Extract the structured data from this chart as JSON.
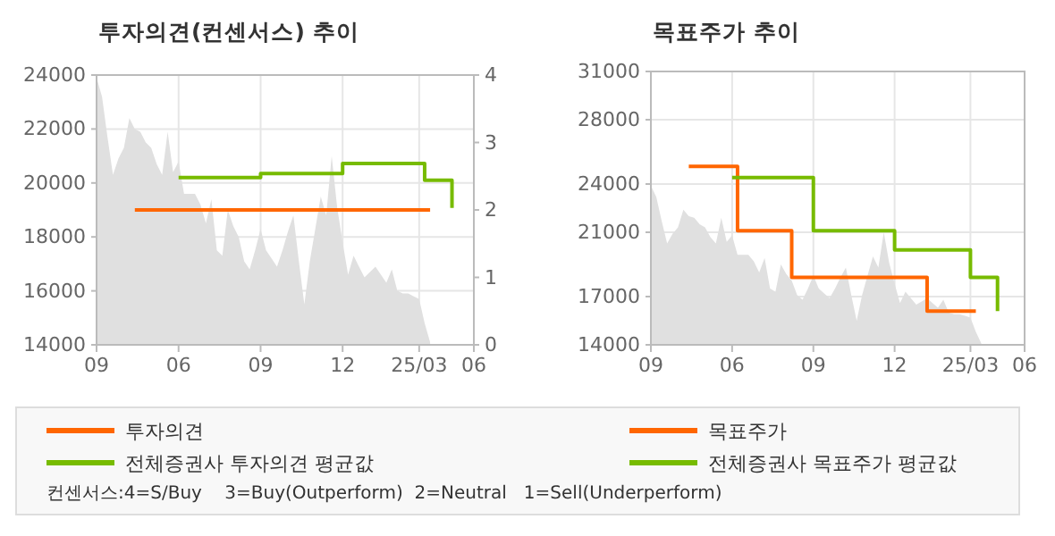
{
  "chart_data": [
    {
      "type": "step",
      "title": "투자의견(컨센서스) 추이",
      "categories": [
        "09",
        null,
        null,
        null,
        null,
        null,
        null,
        null,
        null,
        null,
        null,
        null,
        null,
        null,
        null,
        "06",
        null,
        null,
        null,
        null,
        null,
        null,
        null,
        null,
        null,
        null,
        null,
        null,
        null,
        null,
        "09",
        null,
        null,
        null,
        null,
        null,
        null,
        null,
        null,
        null,
        null,
        null,
        null,
        null,
        null,
        "12",
        null,
        null,
        null,
        null,
        null,
        null,
        null,
        null,
        null,
        null,
        null,
        null,
        null,
        "25/03",
        null,
        null,
        null,
        null,
        null,
        null,
        null,
        null,
        null,
        "06"
      ],
      "ylim": [
        14000,
        24000
      ],
      "yticks": [
        14000,
        16000,
        18000,
        20000,
        22000,
        24000
      ],
      "y2lim": [
        0,
        4
      ],
      "y2ticks": [
        0,
        1,
        2,
        3,
        4
      ],
      "grid": true,
      "legend": "bottom",
      "annotations": [
        "컨센서스:4=S/Buy    3=Buy(Outperform)  2=Neutral   1=Sell(Underperform)"
      ],
      "series": [
        {
          "type": "area",
          "color": "#e0e0e0",
          "values": [
            23900,
            23200,
            21700,
            20300,
            20900,
            21300,
            22400,
            22000,
            21900,
            21500,
            21300,
            20700,
            20300,
            21900,
            20400,
            20800,
            19600,
            19600,
            19600,
            19200,
            18500,
            19400,
            17500,
            17300,
            19000,
            18400,
            18000,
            17100,
            16800,
            17500,
            18300,
            17500,
            17200,
            16900,
            17500,
            18200,
            18800,
            17100,
            15500,
            17100,
            18300,
            19500,
            18800,
            21000,
            19100,
            17800,
            16600,
            17300,
            16900,
            16500,
            16700,
            16900,
            16600,
            16300,
            16800,
            16000,
            15900,
            15900,
            15800,
            15700,
            14800,
            14100,
            null,
            null,
            null,
            null,
            null,
            null,
            null,
            null
          ]
        },
        {
          "name": "투자의견",
          "color": "#ff6600",
          "axis": "y2",
          "values": [
            null,
            null,
            null,
            null,
            null,
            null,
            null,
            2,
            2,
            2,
            2,
            2,
            2,
            2,
            2,
            2,
            2,
            2,
            2,
            2,
            2,
            2,
            2,
            2,
            2,
            2,
            2,
            2,
            2,
            2,
            2,
            2,
            2,
            2,
            2,
            2,
            2,
            2,
            2,
            2,
            2,
            2,
            2,
            2,
            2,
            2,
            2,
            2,
            2,
            2,
            2,
            2,
            2,
            2,
            2,
            2,
            2,
            2,
            2,
            2,
            2,
            2,
            null,
            null,
            null,
            null,
            null,
            null,
            null,
            null
          ]
        },
        {
          "name": "전체증권사 투자의견 평균값",
          "color": "#77bb00",
          "axis": "y2",
          "values": [
            null,
            null,
            null,
            null,
            null,
            null,
            null,
            null,
            null,
            null,
            null,
            null,
            null,
            null,
            null,
            2.48,
            2.48,
            2.48,
            2.48,
            2.48,
            2.48,
            2.48,
            2.48,
            2.48,
            2.48,
            2.48,
            2.48,
            2.48,
            2.48,
            2.48,
            2.54,
            2.54,
            2.54,
            2.54,
            2.54,
            2.54,
            2.54,
            2.54,
            2.54,
            2.54,
            2.54,
            2.54,
            2.54,
            2.54,
            2.54,
            2.69,
            2.69,
            2.69,
            2.69,
            2.69,
            2.69,
            2.69,
            2.69,
            2.69,
            2.69,
            2.69,
            2.69,
            2.69,
            2.69,
            2.69,
            2.44,
            2.44,
            2.44,
            2.44,
            2.44,
            2.03,
            null,
            null,
            null,
            null
          ]
        }
      ]
    },
    {
      "type": "step",
      "title": "목표주가 추이",
      "categories": [
        "09",
        null,
        null,
        null,
        null,
        null,
        null,
        null,
        null,
        null,
        null,
        null,
        null,
        null,
        null,
        "06",
        null,
        null,
        null,
        null,
        null,
        null,
        null,
        null,
        null,
        null,
        null,
        null,
        null,
        null,
        "09",
        null,
        null,
        null,
        null,
        null,
        null,
        null,
        null,
        null,
        null,
        null,
        null,
        null,
        null,
        "12",
        null,
        null,
        null,
        null,
        null,
        null,
        null,
        null,
        null,
        null,
        null,
        null,
        null,
        "25/03",
        null,
        null,
        null,
        null,
        null,
        null,
        null,
        null,
        null,
        "06"
      ],
      "ylim": [
        14000,
        31000
      ],
      "yticks": [
        14000,
        17000,
        21000,
        24000,
        28000,
        31000
      ],
      "grid": true,
      "legend": "bottom",
      "series": [
        {
          "type": "area",
          "color": "#e0e0e0",
          "values": [
            23900,
            23200,
            21700,
            20300,
            20900,
            21300,
            22400,
            22000,
            21900,
            21500,
            21300,
            20700,
            20300,
            21900,
            20400,
            20800,
            19600,
            19600,
            19600,
            19200,
            18500,
            19400,
            17500,
            17300,
            19000,
            18400,
            18000,
            17100,
            16800,
            17500,
            18300,
            17500,
            17200,
            16900,
            17500,
            18200,
            18800,
            17100,
            15500,
            17100,
            18300,
            19500,
            18800,
            21000,
            19100,
            17800,
            16600,
            17300,
            16900,
            16500,
            16700,
            16900,
            16600,
            16300,
            16800,
            16000,
            15900,
            15900,
            15800,
            15700,
            14800,
            14100,
            null,
            null,
            null,
            null,
            null,
            null,
            null,
            null
          ]
        },
        {
          "name": "목표주가",
          "color": "#ff6600",
          "values": [
            null,
            null,
            null,
            null,
            null,
            null,
            null,
            25100,
            25100,
            25100,
            25100,
            25100,
            25100,
            25100,
            25100,
            25100,
            21100,
            21100,
            21100,
            21100,
            21100,
            21100,
            21100,
            21100,
            21100,
            21100,
            18200,
            18200,
            18200,
            18200,
            18200,
            18200,
            18200,
            18200,
            18200,
            18200,
            18200,
            18200,
            18200,
            18200,
            18200,
            18200,
            18200,
            18200,
            18200,
            18200,
            18200,
            18200,
            18200,
            18200,
            18200,
            16100,
            16100,
            16100,
            16100,
            16100,
            16100,
            16100,
            16100,
            16100,
            16100,
            null,
            null,
            null,
            null,
            null,
            null,
            null,
            null,
            null
          ]
        },
        {
          "name": "전체증권사 목표주가 평균값",
          "color": "#77bb00",
          "values": [
            null,
            null,
            null,
            null,
            null,
            null,
            null,
            null,
            null,
            null,
            null,
            null,
            null,
            null,
            null,
            24400,
            24400,
            24400,
            24400,
            24400,
            24400,
            24400,
            24400,
            24400,
            24400,
            24400,
            24400,
            24400,
            24400,
            24400,
            21100,
            21100,
            21100,
            21100,
            21100,
            21100,
            21100,
            21100,
            21100,
            21100,
            21100,
            21100,
            21100,
            21100,
            21100,
            19900,
            19900,
            19900,
            19900,
            19900,
            19900,
            19900,
            19900,
            19900,
            19900,
            19900,
            19900,
            19900,
            19900,
            18200,
            18200,
            18200,
            18200,
            18200,
            16100,
            null,
            null,
            null,
            null,
            null
          ]
        }
      ]
    }
  ]
}
